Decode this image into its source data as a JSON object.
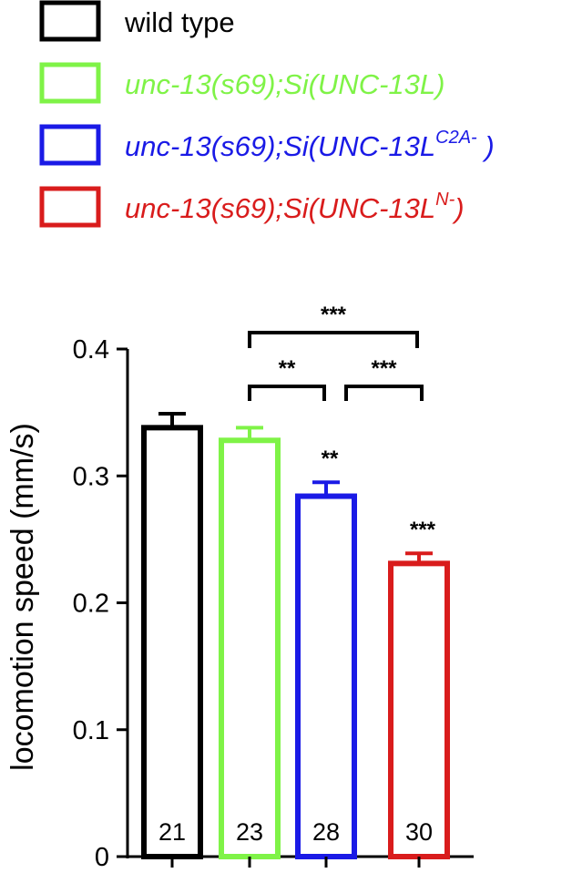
{
  "chart_data": {
    "type": "bar",
    "categories": [
      "wild type",
      "unc-13(s69);Si(UNC-13L)",
      "unc-13(s69);Si(UNC-13L C2A-)",
      "unc-13(s69);Si(UNC-13L N-)"
    ],
    "values": [
      0.338,
      0.328,
      0.284,
      0.231
    ],
    "errors": [
      0.011,
      0.01,
      0.011,
      0.008
    ],
    "n": [
      "21",
      "23",
      "28",
      "30"
    ],
    "colors": [
      "#000000",
      "#7ff347",
      "#1a1ae6",
      "#d91c1c"
    ],
    "ylabel": "locomotion speed (mm/s)",
    "ylim": [
      0,
      0.4
    ],
    "yticks": [
      0,
      0.1,
      0.2,
      0.3,
      0.4
    ],
    "ytick_labels": [
      "0",
      "0.1",
      "0.2",
      "0.3",
      "0.4"
    ],
    "grid": false,
    "legend_position": "top-left",
    "bar_significance": [
      "",
      "",
      "**",
      "***"
    ],
    "comparisons": [
      {
        "from": 1,
        "to": 2,
        "label": "**"
      },
      {
        "from": 2,
        "to": 3,
        "label": "***"
      },
      {
        "from": 1,
        "to": 3,
        "label": "***"
      }
    ]
  },
  "legend": [
    {
      "prefix": "wild type",
      "sup": "",
      "suffix": "",
      "color": "#000000",
      "italic": false
    },
    {
      "prefix": "unc-13(s69);Si(UNC-13L)",
      "sup": "",
      "suffix": "",
      "color": "#7ff347",
      "italic": true
    },
    {
      "prefix": "unc-13(s69);Si(UNC-13L",
      "sup": "C2A-",
      "suffix": " )",
      "color": "#1a1ae6",
      "italic": true
    },
    {
      "prefix": "unc-13(s69);Si(UNC-13L",
      "sup": "N-",
      "suffix": ")",
      "color": "#d91c1c",
      "italic": true
    }
  ]
}
